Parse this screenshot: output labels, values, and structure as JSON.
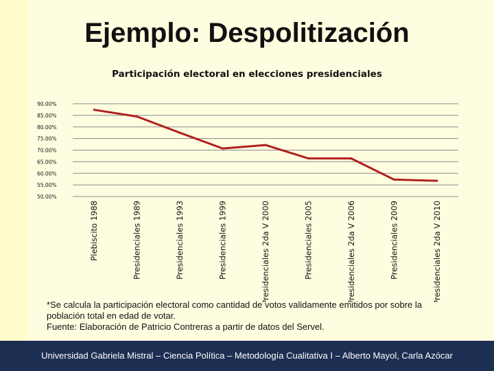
{
  "slide": {
    "title": "Ejemplo: Despolitización",
    "footnote_line1": "*Se calcula la participación electoral como cantidad de votos validamente emitidos por sobre la población total en edad de votar.",
    "footnote_line2": "Fuente: Elaboración de Patricio Contreras a partir de datos del Servel.",
    "footer": "Universidad Gabriela Mistral – Ciencia Política – Metodología Cualitativa I – Alberto Mayol, Carla Azócar"
  },
  "colors": {
    "line": "#b0201e",
    "grid": "#8a8a8a",
    "footer_bg": "#1c2e52"
  },
  "chart_data": {
    "type": "line",
    "title": "Participación electoral en elecciones presidenciales",
    "xlabel": "",
    "ylabel": "",
    "ylim": [
      0.5,
      0.9
    ],
    "yticks": [
      0.5,
      0.55,
      0.6,
      0.65,
      0.7,
      0.75,
      0.8,
      0.85,
      0.9
    ],
    "ytick_labels": [
      "50.00%",
      "55.00%",
      "60.00%",
      "65.00%",
      "70.00%",
      "75.00%",
      "80.00%",
      "85.00%",
      "90.00%"
    ],
    "grid": true,
    "categories": [
      "Plebiscito 1988",
      "Presidenciales 1989",
      "Presidenciales 1993",
      "Presidenciales 1999",
      "Presidenciales 2da V 2000",
      "Presidenciales 2005",
      "Presidenciales 2da V 2006",
      "Presidenciales 2009",
      "Presidenciales 2da V 2010"
    ],
    "series": [
      {
        "name": "Participación electoral",
        "values": [
          0.874,
          0.845,
          0.775,
          0.707,
          0.722,
          0.664,
          0.664,
          0.573,
          0.568
        ]
      }
    ]
  }
}
